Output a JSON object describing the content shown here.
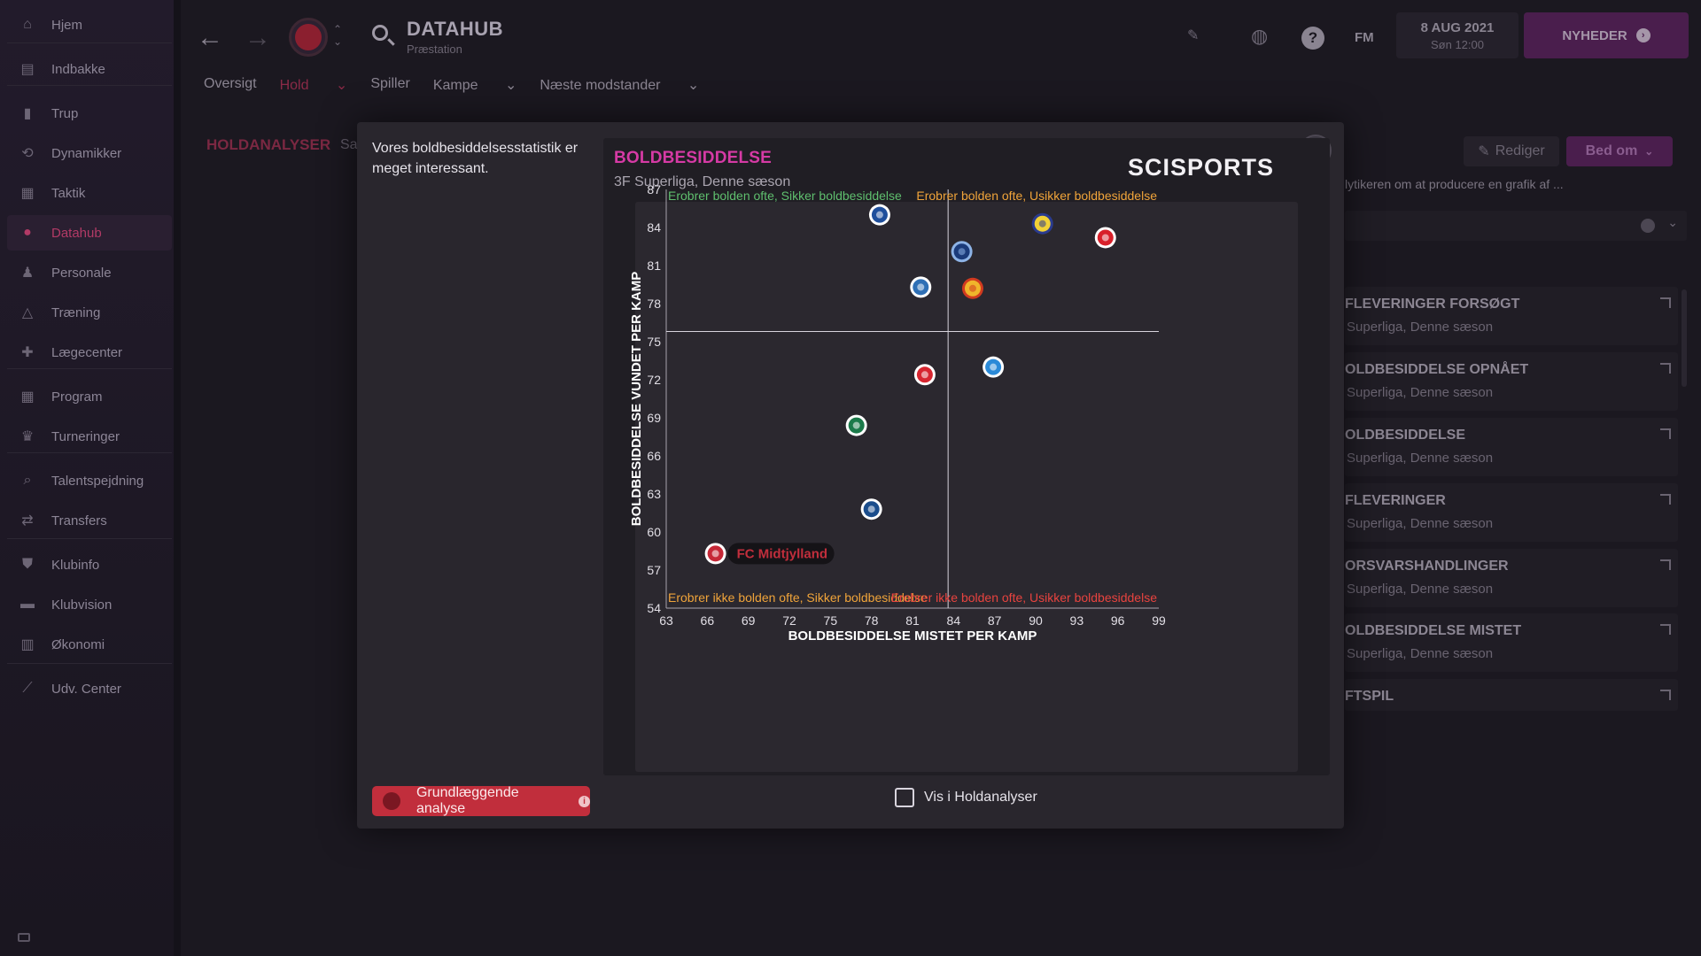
{
  "sidebar": {
    "items": [
      {
        "label": "Hjem",
        "icon": "home-icon"
      },
      {
        "label": "Indbakke",
        "icon": "inbox-icon"
      },
      {
        "label": "Trup",
        "icon": "shirt-icon"
      },
      {
        "label": "Dynamikker",
        "icon": "dynamics-icon"
      },
      {
        "label": "Taktik",
        "icon": "tactics-icon"
      },
      {
        "label": "Datahub",
        "icon": "datahub-icon",
        "active": true
      },
      {
        "label": "Personale",
        "icon": "staff-icon"
      },
      {
        "label": "Træning",
        "icon": "training-icon"
      },
      {
        "label": "Lægecenter",
        "icon": "medical-icon"
      },
      {
        "label": "Program",
        "icon": "calendar-icon"
      },
      {
        "label": "Turneringer",
        "icon": "trophy-icon"
      },
      {
        "label": "Talentspejdning",
        "icon": "scouting-icon"
      },
      {
        "label": "Transfers",
        "icon": "transfers-icon"
      },
      {
        "label": "Klubinfo",
        "icon": "shield-icon"
      },
      {
        "label": "Klubvision",
        "icon": "vision-icon"
      },
      {
        "label": "Økonomi",
        "icon": "finance-icon"
      },
      {
        "label": "Udv. Center",
        "icon": "development-icon"
      }
    ]
  },
  "header": {
    "title": "DATAHUB",
    "subtitle": "Præstation",
    "fm_label": "FM",
    "date": "8 AUG 2021",
    "date_sub": "Søn 12:00",
    "news_label": "NYHEDER",
    "help_label": "?"
  },
  "tabs": [
    "Oversigt",
    "Hold",
    "Spiller",
    "Kampe",
    "Næste modstander"
  ],
  "breadcrumb": {
    "section": "HOLDANALYSER",
    "partial": "Sa"
  },
  "right_panel": {
    "edit_label": "Rediger",
    "ask_label": "Bed om",
    "intro_text": "lytikeren om at producere en grafik af ...",
    "cards": [
      {
        "title": "FLEVERINGER FORSØGT",
        "sub": "Superliga, Denne sæson"
      },
      {
        "title": "OLDBESIDDELSE OPNÅET",
        "sub": "Superliga, Denne sæson"
      },
      {
        "title": "OLDBESIDDELSE",
        "sub": "Superliga, Denne sæson"
      },
      {
        "title": "FLEVERINGER",
        "sub": "Superliga, Denne sæson"
      },
      {
        "title": "ORSVARSHANDLINGER",
        "sub": "Superliga, Denne sæson"
      },
      {
        "title": "OLDBESIDDELSE MISTET",
        "sub": "Superliga, Denne sæson"
      },
      {
        "title": "FTSPIL",
        "sub": ""
      }
    ]
  },
  "modal": {
    "description": "Vores boldbesiddelsesstatistik er meget interessant.",
    "brand": "SCISPORTS",
    "basic_analysis_label": "Grundlæggende analyse",
    "show_in_team_analyses_label": "Vis i Holdanalyser",
    "close_label": "×"
  },
  "colors": {
    "accent_pink": "#d63aa5",
    "q_top_left": "#5fbf6e",
    "q_top_right": "#f0a43a",
    "q_bottom_left": "#f0a43a",
    "q_bottom_right": "#e8433f",
    "highlight_red": "#c12e3c"
  },
  "chart_data": {
    "type": "scatter",
    "title": "BOLDBESIDDELSE",
    "subtitle": "3F Superliga, Denne sæson",
    "xlabel": "BOLDBESIDDELSE MISTET PER KAMP",
    "ylabel": "BOLDBESIDDELSE VUNDET PER KAMP",
    "xlim": [
      63,
      99
    ],
    "ylim": [
      54,
      87
    ],
    "xticks": [
      63,
      66,
      69,
      72,
      75,
      78,
      81,
      84,
      87,
      90,
      93,
      96,
      99
    ],
    "yticks": [
      54,
      57,
      60,
      63,
      66,
      69,
      72,
      75,
      78,
      81,
      84,
      87
    ],
    "reference_x": 83.6,
    "reference_y": 75.8,
    "quadrants": {
      "top_left": "Erobrer bolden ofte, Sikker boldbesiddelse",
      "top_right": "Erobrer bolden ofte, Usikker boldbesiddelse",
      "bottom_left": "Erobrer ikke bolden ofte, Sikker boldbesiddelse",
      "bottom_right": "Erobrer ikke bolden ofte, Usikker boldbesiddelse"
    },
    "highlight_label": "FC Midtjylland",
    "points": [
      {
        "x": 66.6,
        "y": 58.3,
        "color": "#c62837",
        "ring": "#ffffff",
        "highlight": true
      },
      {
        "x": 78.6,
        "y": 85.0,
        "color": "#1f4f9c",
        "ring": "#ffffff"
      },
      {
        "x": 90.5,
        "y": 84.3,
        "color": "#f1d136",
        "ring": "#2a3b8f"
      },
      {
        "x": 95.1,
        "y": 83.2,
        "color": "#d8202a",
        "ring": "#ffffff"
      },
      {
        "x": 84.6,
        "y": 82.1,
        "color": "#1b3b7a",
        "ring": "#8db3e6"
      },
      {
        "x": 81.6,
        "y": 79.3,
        "color": "#2e6fb5",
        "ring": "#ffffff"
      },
      {
        "x": 85.4,
        "y": 79.2,
        "color": "#f0b52b",
        "ring": "#d13a1f"
      },
      {
        "x": 86.9,
        "y": 73.0,
        "color": "#2b8ad8",
        "ring": "#ffffff"
      },
      {
        "x": 81.9,
        "y": 72.4,
        "color": "#d72630",
        "ring": "#ffffff"
      },
      {
        "x": 76.9,
        "y": 68.4,
        "color": "#1b7a4a",
        "ring": "#ffffff"
      },
      {
        "x": 78.0,
        "y": 61.8,
        "color": "#1b4d8c",
        "ring": "#ffffff"
      }
    ]
  }
}
